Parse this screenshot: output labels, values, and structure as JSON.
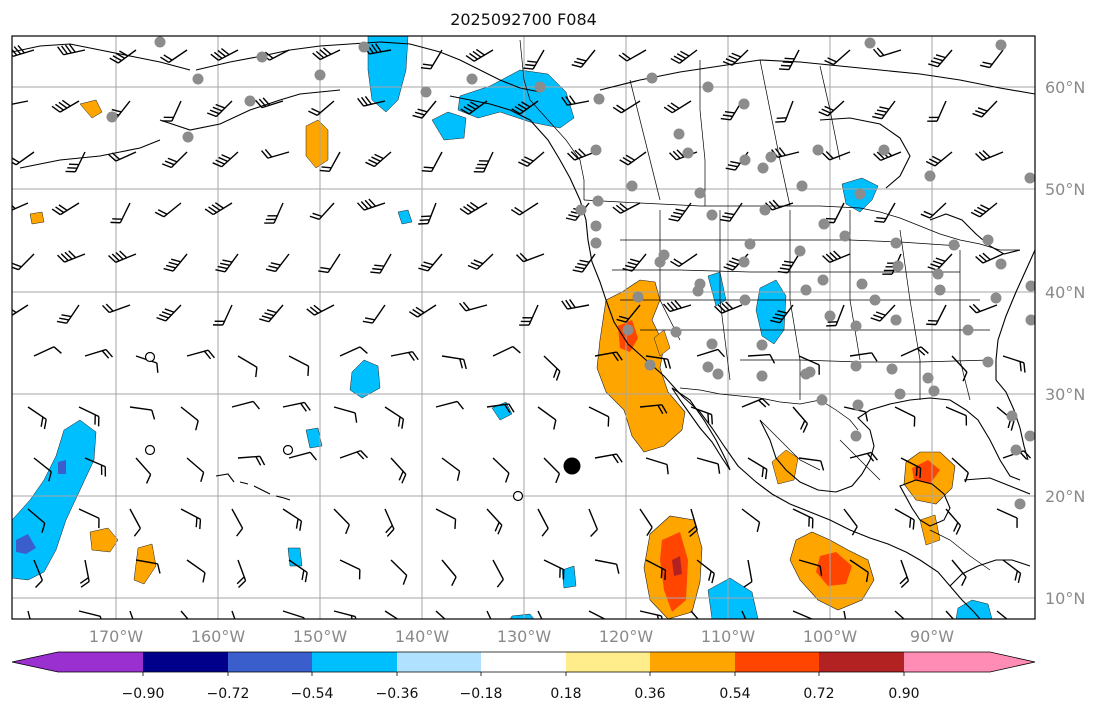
{
  "title": "2025092700 F084",
  "map": {
    "lon_labels": [
      "170°W",
      "160°W",
      "150°W",
      "140°W",
      "130°W",
      "120°W",
      "110°W",
      "100°W",
      "90°W"
    ],
    "lat_labels": [
      "60°N",
      "50°N",
      "40°N",
      "30°N",
      "20°N",
      "10°N"
    ],
    "grid": true
  },
  "colorbar": {
    "ticks": [
      "−0.90",
      "−0.72",
      "−0.54",
      "−0.36",
      "−0.18",
      "0.18",
      "0.36",
      "0.54",
      "0.72",
      "0.90"
    ],
    "colors": [
      "#9b30d0",
      "#00008b",
      "#3a5fcd",
      "#00bfff",
      "#b0e2ff",
      "#ffffff",
      "#ffec8b",
      "#ffa500",
      "#ff4500",
      "#b22222",
      "#ff8cb4"
    ]
  },
  "colors": {
    "blue": "#00bfff",
    "light_blue": "#b0e2ff",
    "orange": "#ffa500",
    "red": "#ff4500",
    "dark_red": "#b22222"
  }
}
